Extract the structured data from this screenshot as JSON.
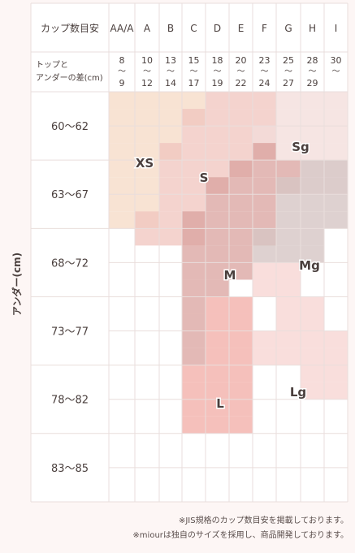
{
  "header": {
    "cup_label": "カップ数目安",
    "diff_label_line1": "トップと",
    "diff_label_line2": "アンダーの差(cm)"
  },
  "cups": [
    "AA/A",
    "A",
    "B",
    "C",
    "D",
    "E",
    "F",
    "G",
    "H",
    "I"
  ],
  "diffs": [
    {
      "from": "8",
      "to": "9"
    },
    {
      "from": "10",
      "to": "12"
    },
    {
      "from": "13",
      "to": "14"
    },
    {
      "from": "15",
      "to": "17"
    },
    {
      "from": "18",
      "to": "19"
    },
    {
      "from": "20",
      "to": "22"
    },
    {
      "from": "23",
      "to": "24"
    },
    {
      "from": "25",
      "to": "27"
    },
    {
      "from": "28",
      "to": "29"
    },
    {
      "from": "30",
      "to": ""
    }
  ],
  "tilde": "〜",
  "under_ranges": [
    "60〜62",
    "63〜67",
    "68〜72",
    "73〜77",
    "78〜82",
    "83〜85"
  ],
  "axis_label": "アンダー(cm)",
  "sizes": [
    {
      "name": "XS",
      "color": "#f6dcc8",
      "opacity": 0.8
    },
    {
      "name": "S",
      "color": "#f0c4bd",
      "opacity": 0.75
    },
    {
      "name": "Sg",
      "color": "#f3dcda",
      "opacity": 0.75
    },
    {
      "name": "M",
      "color": "#d9a29e",
      "opacity": 0.75
    },
    {
      "name": "Mg",
      "color": "#d6c5c4",
      "opacity": 0.8
    },
    {
      "name": "L",
      "color": "#f2aba4",
      "opacity": 0.75
    },
    {
      "name": "Lg",
      "color": "#f6d0cd",
      "opacity": 0.7
    }
  ],
  "notes": [
    "※JIS規格のカップ数目安を掲載しております。",
    "※miourは独自のサイズを採用し、商品開発しております。"
  ]
}
